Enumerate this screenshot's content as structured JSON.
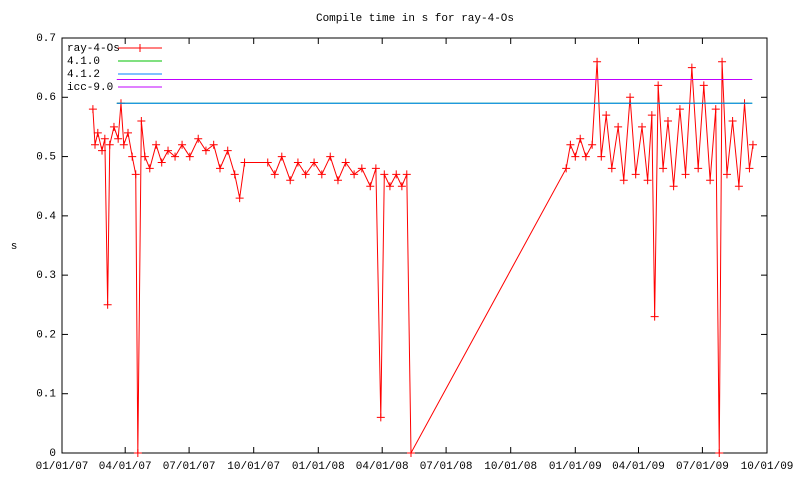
{
  "chart_data": {
    "type": "line",
    "title": "Compile time in s for ray-4-Os",
    "y_label": "s",
    "xlim": [
      "2007-01-01",
      "2009-10-01"
    ],
    "xticks": [
      {
        "value": "2007-01-01",
        "label": "01/01/07"
      },
      {
        "value": "2007-04-01",
        "label": "04/01/07"
      },
      {
        "value": "2007-07-01",
        "label": "07/01/07"
      },
      {
        "value": "2007-10-01",
        "label": "10/01/07"
      },
      {
        "value": "2008-01-01",
        "label": "01/01/08"
      },
      {
        "value": "2008-04-01",
        "label": "04/01/08"
      },
      {
        "value": "2008-07-01",
        "label": "07/01/08"
      },
      {
        "value": "2008-10-01",
        "label": "10/01/08"
      },
      {
        "value": "2009-01-01",
        "label": "01/01/09"
      },
      {
        "value": "2009-04-01",
        "label": "04/01/09"
      },
      {
        "value": "2009-07-01",
        "label": "07/01/09"
      },
      {
        "value": "2009-10-01",
        "label": "10/01/09"
      }
    ],
    "ylim": [
      0,
      0.7
    ],
    "yticks": [
      0,
      0.1,
      0.2,
      0.3,
      0.4,
      0.5,
      0.6,
      0.7
    ],
    "grid": false,
    "legend": "top-left",
    "series": [
      {
        "name": "ray-4-Os",
        "color": "#ff0000",
        "marker": "plus",
        "x": [
          "2007-02-14",
          "2007-02-17",
          "2007-02-21",
          "2007-02-27",
          "2007-03-03",
          "2007-03-07",
          "2007-03-10",
          "2007-03-16",
          "2007-03-22",
          "2007-03-26",
          "2007-03-30",
          "2007-04-05",
          "2007-04-11",
          "2007-04-16",
          "2007-04-19",
          "2007-04-24",
          "2007-04-29",
          "2007-05-06",
          "2007-05-15",
          "2007-05-23",
          "2007-06-01",
          "2007-06-11",
          "2007-06-21",
          "2007-07-02",
          "2007-07-14",
          "2007-07-25",
          "2007-08-05",
          "2007-08-14",
          "2007-08-25",
          "2007-09-04",
          "2007-09-11",
          "2007-09-18",
          "2007-10-21",
          "2007-10-31",
          "2007-11-10",
          "2007-11-22",
          "2007-12-03",
          "2007-12-14",
          "2007-12-26",
          "2008-01-06",
          "2008-01-18",
          "2008-01-29",
          "2008-02-09",
          "2008-02-21",
          "2008-03-03",
          "2008-03-15",
          "2008-03-23",
          "2008-03-30",
          "2008-04-04",
          "2008-04-12",
          "2008-04-21",
          "2008-04-29",
          "2008-05-06",
          "2008-05-12",
          "2008-12-19",
          "2008-12-25",
          "2009-01-01",
          "2009-01-08",
          "2009-01-16",
          "2009-01-25",
          "2009-02-01",
          "2009-02-07",
          "2009-02-14",
          "2009-02-22",
          "2009-03-03",
          "2009-03-11",
          "2009-03-20",
          "2009-03-28",
          "2009-04-06",
          "2009-04-14",
          "2009-04-20",
          "2009-04-24",
          "2009-04-29",
          "2009-05-06",
          "2009-05-13",
          "2009-05-21",
          "2009-05-30",
          "2009-06-07",
          "2009-06-16",
          "2009-06-25",
          "2009-07-03",
          "2009-07-12",
          "2009-07-20",
          "2009-07-25",
          "2009-07-29",
          "2009-08-05",
          "2009-08-13",
          "2009-08-22",
          "2009-08-30",
          "2009-09-06",
          "2009-09-11"
        ],
        "values": [
          0.58,
          0.52,
          0.54,
          0.51,
          0.53,
          0.25,
          0.52,
          0.55,
          0.53,
          0.59,
          0.52,
          0.54,
          0.5,
          0.47,
          0.0,
          0.56,
          0.5,
          0.48,
          0.52,
          0.49,
          0.51,
          0.5,
          0.52,
          0.5,
          0.53,
          0.51,
          0.52,
          0.48,
          0.51,
          0.47,
          0.43,
          0.49,
          0.49,
          0.47,
          0.5,
          0.46,
          0.49,
          0.47,
          0.49,
          0.47,
          0.5,
          0.46,
          0.49,
          0.47,
          0.48,
          0.45,
          0.48,
          0.06,
          0.47,
          0.45,
          0.47,
          0.45,
          0.47,
          0.0,
          0.48,
          0.52,
          0.5,
          0.53,
          0.5,
          0.52,
          0.66,
          0.5,
          0.57,
          0.48,
          0.55,
          0.46,
          0.6,
          0.47,
          0.55,
          0.46,
          0.57,
          0.23,
          0.62,
          0.48,
          0.56,
          0.45,
          0.58,
          0.47,
          0.65,
          0.48,
          0.62,
          0.46,
          0.58,
          0.0,
          0.66,
          0.47,
          0.56,
          0.45,
          0.59,
          0.48,
          0.52
        ]
      },
      {
        "name": "4.1.0",
        "color": "#00c000",
        "x": [
          "2007-03-20",
          "2009-09-10"
        ],
        "values": [
          0.59,
          0.59
        ]
      },
      {
        "name": "4.1.2",
        "color": "#0080ff",
        "x": [
          "2007-03-20",
          "2009-09-10"
        ],
        "values": [
          0.59,
          0.59
        ]
      },
      {
        "name": "icc-9.0",
        "color": "#c000ff",
        "x": [
          "2007-03-20",
          "2009-09-10"
        ],
        "values": [
          0.63,
          0.63
        ]
      }
    ]
  }
}
